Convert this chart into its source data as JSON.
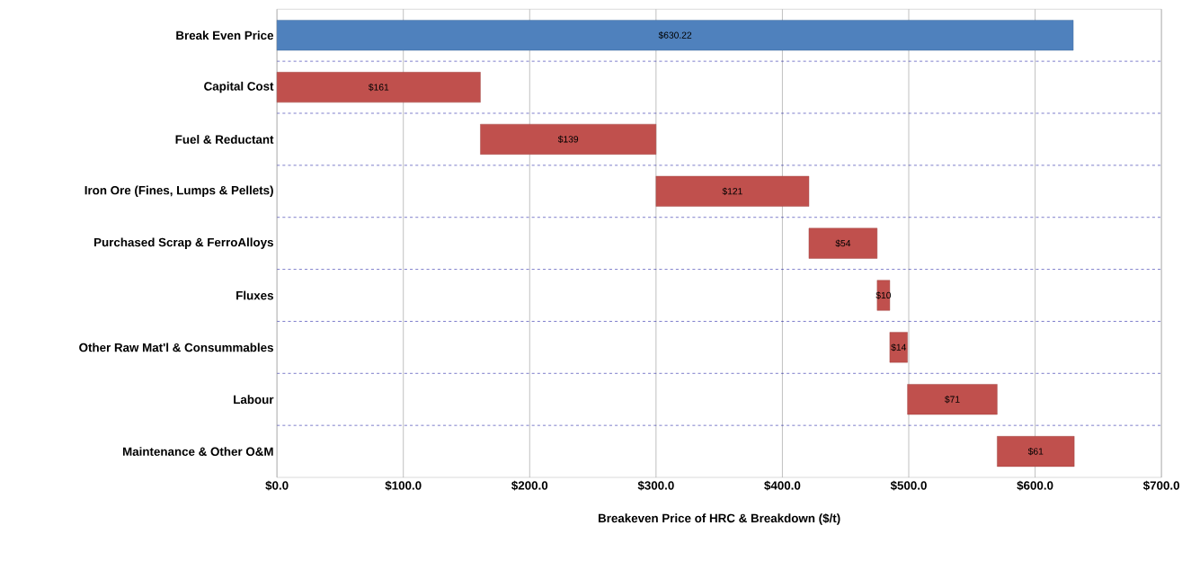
{
  "chart_data": {
    "type": "bar",
    "orientation": "horizontal",
    "xlabel": "Breakeven Price of HRC  & Breakdown ($/t)",
    "categories": [
      "Break Even Price",
      "Capital Cost",
      "Fuel & Reductant",
      "Iron Ore (Fines, Lumps & Pellets)",
      "Purchased Scrap & FerroAlloys",
      "Fluxes",
      "Other Raw Mat'l & Consummables",
      "Labour",
      "Maintenance & Other O&M"
    ],
    "values": [
      630.22,
      161,
      139,
      121,
      54,
      10,
      14,
      71,
      61
    ],
    "base": [
      0,
      0,
      161,
      300,
      421,
      475,
      485,
      499,
      570
    ],
    "colors": [
      "#4f81bd",
      "#c0504d",
      "#c0504d",
      "#c0504d",
      "#c0504d",
      "#c0504d",
      "#c0504d",
      "#c0504d",
      "#c0504d"
    ],
    "value_labels": [
      "$630.22",
      "$161",
      "$139",
      "$121",
      "$54",
      "$10",
      "$14",
      "$71",
      "$61"
    ],
    "xlim": [
      0,
      700
    ],
    "xticks": [
      {
        "value": 0,
        "label": "$0.0"
      },
      {
        "value": 100,
        "label": "$100.0"
      },
      {
        "value": 200,
        "label": "$200.0"
      },
      {
        "value": 300,
        "label": "$300.0"
      },
      {
        "value": 400,
        "label": "$400.0"
      },
      {
        "value": 500,
        "label": "$500.0"
      },
      {
        "value": 600,
        "label": "$600.0"
      },
      {
        "value": 700,
        "label": "$700.0"
      }
    ],
    "grid": true
  }
}
